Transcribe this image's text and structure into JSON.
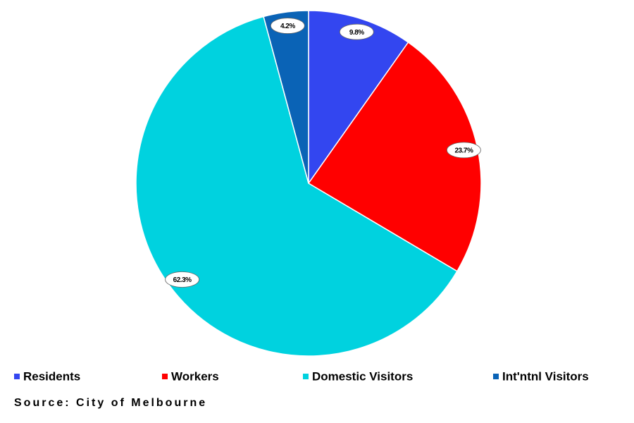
{
  "chart_data": {
    "type": "pie",
    "categories": [
      "Residents",
      "Workers",
      "Domestic Visitors",
      "Int'ntnl Visitors"
    ],
    "values": [
      9.8,
      23.7,
      62.3,
      4.2
    ],
    "value_labels": [
      "9.8%",
      "23.7%",
      "62.3%",
      "4.2%"
    ],
    "colors": [
      "#3346f0",
      "#ff0000",
      "#00d2df",
      "#0a63b6"
    ],
    "legend": "bottom",
    "source": "Source: City of Melbourne"
  }
}
